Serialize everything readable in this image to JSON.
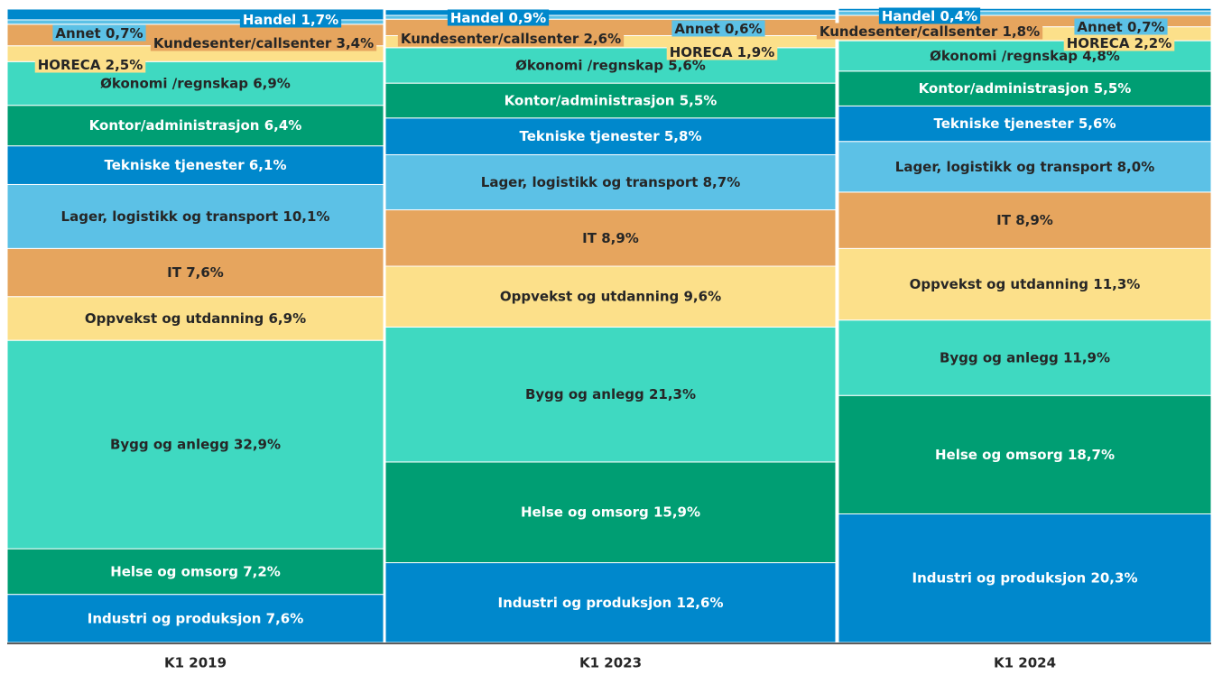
{
  "chart_data": {
    "type": "stacked_bar_100",
    "categories": [
      "K1 2019",
      "K1 2023",
      "K1 2024"
    ],
    "series": [
      {
        "name": "Industri og produksjon",
        "color": "#0088cc",
        "values": [
          7.6,
          12.6,
          20.3
        ],
        "value_labels": [
          "7,6%",
          "12,6%",
          "20,3%"
        ]
      },
      {
        "name": "Helse og omsorg",
        "color": "#009e73",
        "values": [
          7.2,
          15.9,
          18.7
        ],
        "value_labels": [
          "7,2%",
          "15,9%",
          "18,7%"
        ]
      },
      {
        "name": "Bygg og anlegg",
        "color": "#3fd9c1",
        "values": [
          32.9,
          21.3,
          11.9
        ],
        "value_labels": [
          "32,9%",
          "21,3%",
          "11,9%"
        ]
      },
      {
        "name": "Oppvekst og utdanning",
        "color": "#fce08a",
        "values": [
          6.9,
          9.6,
          11.3
        ],
        "value_labels": [
          "6,9%",
          "9,6%",
          "11,3%"
        ]
      },
      {
        "name": "IT",
        "color": "#e6a55e",
        "values": [
          7.6,
          8.9,
          8.9
        ],
        "value_labels": [
          "7,6%",
          "8,9%",
          "8,9%"
        ]
      },
      {
        "name": "Lager, logistikk og transport",
        "color": "#5cc1e6",
        "values": [
          10.1,
          8.7,
          8.0
        ],
        "value_labels": [
          "10,1%",
          "8,7%",
          "8,0%"
        ]
      },
      {
        "name": "Tekniske tjenester",
        "color": "#0088cc",
        "values": [
          6.1,
          5.8,
          5.6
        ],
        "value_labels": [
          "6,1%",
          "5,8%",
          "5,6%"
        ]
      },
      {
        "name": "Kontor/administrasjon",
        "color": "#009e73",
        "values": [
          6.4,
          5.5,
          5.5
        ],
        "value_labels": [
          "6,4%",
          "5,5%",
          "5,5%"
        ]
      },
      {
        "name": "Økonomi /regnskap",
        "color": "#3fd9c1",
        "values": [
          6.9,
          5.6,
          4.8
        ],
        "value_labels": [
          "6,9%",
          "5,6%",
          "4,8%"
        ]
      },
      {
        "name": "HORECA",
        "color": "#fce08a",
        "values": [
          2.5,
          1.9,
          2.2
        ],
        "value_labels": [
          "2,5%",
          "1,9%",
          "2,2%"
        ]
      },
      {
        "name": "Kundesenter/callsenter",
        "color": "#e6a55e",
        "values": [
          3.4,
          2.6,
          1.8
        ],
        "value_labels": [
          "3,4%",
          "2,6%",
          "1,8%"
        ]
      },
      {
        "name": "Annet",
        "color": "#5cc1e6",
        "values": [
          0.7,
          0.6,
          0.7
        ],
        "value_labels": [
          "0,7%",
          "0,6%",
          "0,7%"
        ]
      },
      {
        "name": "Handel",
        "color": "#0088cc",
        "values": [
          1.7,
          0.9,
          0.4
        ],
        "value_labels": [
          "1,7%",
          "0,9%",
          "0,4%"
        ]
      }
    ],
    "ylim": [
      0,
      100
    ]
  }
}
